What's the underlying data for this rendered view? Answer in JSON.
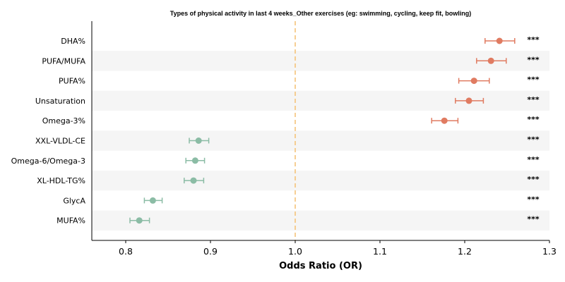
{
  "chart_data": {
    "type": "forest",
    "title": "Types of physical activity in last 4 weeks_Other exercises (eg: swimming, cycling, keep fit, bowling)",
    "xlabel": "Odds Ratio (OR)",
    "xlim": [
      0.76,
      1.3
    ],
    "xticks": [
      "0.8",
      "0.9",
      "1.0",
      "1.1",
      "1.2",
      "1.3"
    ],
    "reference_line": 1.0,
    "rows": [
      {
        "label": "DHA%",
        "or": 1.241,
        "lo": 1.224,
        "hi": 1.259,
        "sig": "***",
        "direction": "up"
      },
      {
        "label": "PUFA/MUFA",
        "or": 1.231,
        "lo": 1.214,
        "hi": 1.249,
        "sig": "***",
        "direction": "up"
      },
      {
        "label": "PUFA%",
        "or": 1.211,
        "lo": 1.193,
        "hi": 1.229,
        "sig": "***",
        "direction": "up"
      },
      {
        "label": "Unsaturation",
        "or": 1.205,
        "lo": 1.189,
        "hi": 1.222,
        "sig": "***",
        "direction": "up"
      },
      {
        "label": "Omega-3%",
        "or": 1.176,
        "lo": 1.161,
        "hi": 1.192,
        "sig": "***",
        "direction": "up"
      },
      {
        "label": "XXL-VLDL-CE",
        "or": 0.886,
        "lo": 0.875,
        "hi": 0.898,
        "sig": "***",
        "direction": "down"
      },
      {
        "label": "Omega-6/Omega-3",
        "or": 0.882,
        "lo": 0.871,
        "hi": 0.893,
        "sig": "***",
        "direction": "down"
      },
      {
        "label": "XL-HDL-TG%",
        "or": 0.88,
        "lo": 0.869,
        "hi": 0.892,
        "sig": "***",
        "direction": "down"
      },
      {
        "label": "GlycA",
        "or": 0.832,
        "lo": 0.822,
        "hi": 0.843,
        "sig": "***",
        "direction": "down"
      },
      {
        "label": "MUFA%",
        "or": 0.816,
        "lo": 0.805,
        "hi": 0.828,
        "sig": "***",
        "direction": "down"
      }
    ],
    "colors": {
      "up": "#e07b61",
      "down": "#8bbca5",
      "reference": "#f5c37a",
      "band": "#f5f5f5"
    }
  }
}
